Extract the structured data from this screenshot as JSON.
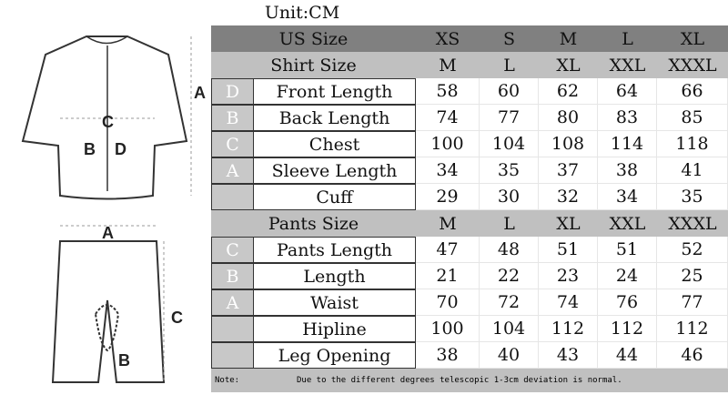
{
  "unit": "Unit:CM",
  "art_labels": {
    "shirt_a": "A",
    "shirt_b": "B",
    "shirt_c": "C",
    "shirt_d": "D",
    "pants_a": "A",
    "pants_b": "B",
    "pants_c": "C"
  },
  "header": {
    "label": "US Size",
    "sizes": [
      "XS",
      "S",
      "M",
      "L",
      "XL"
    ]
  },
  "shirt": {
    "label": "Shirt Size",
    "sizes": [
      "M",
      "L",
      "XL",
      "XXL",
      "XXXL"
    ],
    "rows": [
      {
        "letter": "D",
        "name": "Front Length",
        "values": [
          "58",
          "60",
          "62",
          "64",
          "66"
        ]
      },
      {
        "letter": "B",
        "name": "Back Length",
        "values": [
          "74",
          "77",
          "80",
          "83",
          "85"
        ]
      },
      {
        "letter": "C",
        "name": "Chest",
        "values": [
          "100",
          "104",
          "108",
          "114",
          "118"
        ]
      },
      {
        "letter": "A",
        "name": "Sleeve Length",
        "values": [
          "34",
          "35",
          "37",
          "38",
          "41"
        ]
      },
      {
        "letter": "",
        "name": "Cuff",
        "values": [
          "29",
          "30",
          "32",
          "34",
          "35"
        ]
      }
    ]
  },
  "pants": {
    "label": "Pants Size",
    "sizes": [
      "M",
      "L",
      "XL",
      "XXL",
      "XXXL"
    ],
    "rows": [
      {
        "letter": "C",
        "name": "Pants Length",
        "values": [
          "47",
          "48",
          "51",
          "51",
          "52"
        ]
      },
      {
        "letter": "B",
        "name": "Length",
        "values": [
          "21",
          "22",
          "23",
          "24",
          "25"
        ]
      },
      {
        "letter": "A",
        "name": "Waist",
        "values": [
          "70",
          "72",
          "74",
          "76",
          "77"
        ]
      },
      {
        "letter": "",
        "name": "Hipline",
        "values": [
          "100",
          "104",
          "112",
          "112",
          "112"
        ]
      },
      {
        "letter": "",
        "name": "Leg Opening",
        "values": [
          "38",
          "40",
          "43",
          "44",
          "46"
        ]
      }
    ]
  },
  "note": {
    "label": "Note:",
    "text": "Due to the different degrees telescopic 1-3cm deviation is normal."
  }
}
